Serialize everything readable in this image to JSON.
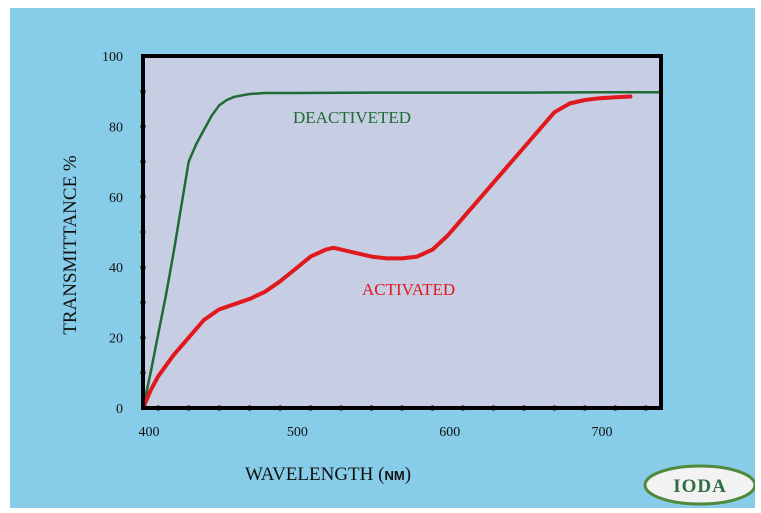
{
  "chart_data": {
    "type": "line",
    "title": "",
    "xlabel_prefix": "WAVELENGTH (",
    "xlabel_unit": "nm",
    "xlabel_suffix": ")",
    "ylabel": "TRANSMITTANCE %",
    "xlim": [
      400,
      740
    ],
    "ylim": [
      0,
      100
    ],
    "x_ticks": [
      400,
      500,
      600,
      700
    ],
    "y_ticks": [
      0,
      20,
      40,
      60,
      80,
      100
    ],
    "grid": false,
    "legend": "inline labels",
    "series": [
      {
        "name": "DEACTIVETED",
        "color": "#1f6b35",
        "x": [
          400,
          405,
          410,
          415,
          420,
          425,
          430,
          435,
          440,
          445,
          450,
          455,
          460,
          470,
          480,
          500,
          550,
          600,
          650,
          700,
          740
        ],
        "y": [
          0,
          10,
          21,
          32,
          44,
          57,
          70,
          75,
          79,
          83,
          86,
          87.5,
          88.4,
          89.2,
          89.5,
          89.5,
          89.6,
          89.6,
          89.6,
          89.7,
          89.7
        ]
      },
      {
        "name": "ACTIVATED",
        "color": "#e0191e",
        "x": [
          400,
          405,
          410,
          420,
          430,
          440,
          450,
          460,
          470,
          480,
          490,
          500,
          510,
          520,
          525,
          530,
          540,
          550,
          560,
          570,
          580,
          590,
          600,
          610,
          620,
          630,
          640,
          650,
          660,
          670,
          680,
          690,
          700,
          710,
          720
        ],
        "y": [
          0,
          5,
          9,
          15,
          20,
          25,
          28,
          29.5,
          31,
          33,
          36,
          39.5,
          43,
          45,
          45.5,
          45,
          44,
          43,
          42.5,
          42.5,
          43,
          45,
          49,
          54,
          59,
          64,
          69,
          74,
          79,
          84,
          86.5,
          87.5,
          88,
          88.3,
          88.5
        ]
      }
    ]
  },
  "labels": {
    "deactivated": "DEACTIVETED",
    "activated": "ACTIVATED"
  },
  "logo": {
    "text": "IODA"
  },
  "colors": {
    "background": "#87cde9",
    "plot_area": "#c7cde2",
    "deactivated": "#1f6b35",
    "activated": "#e0191e",
    "logo_accent": "#4f8a3d"
  }
}
